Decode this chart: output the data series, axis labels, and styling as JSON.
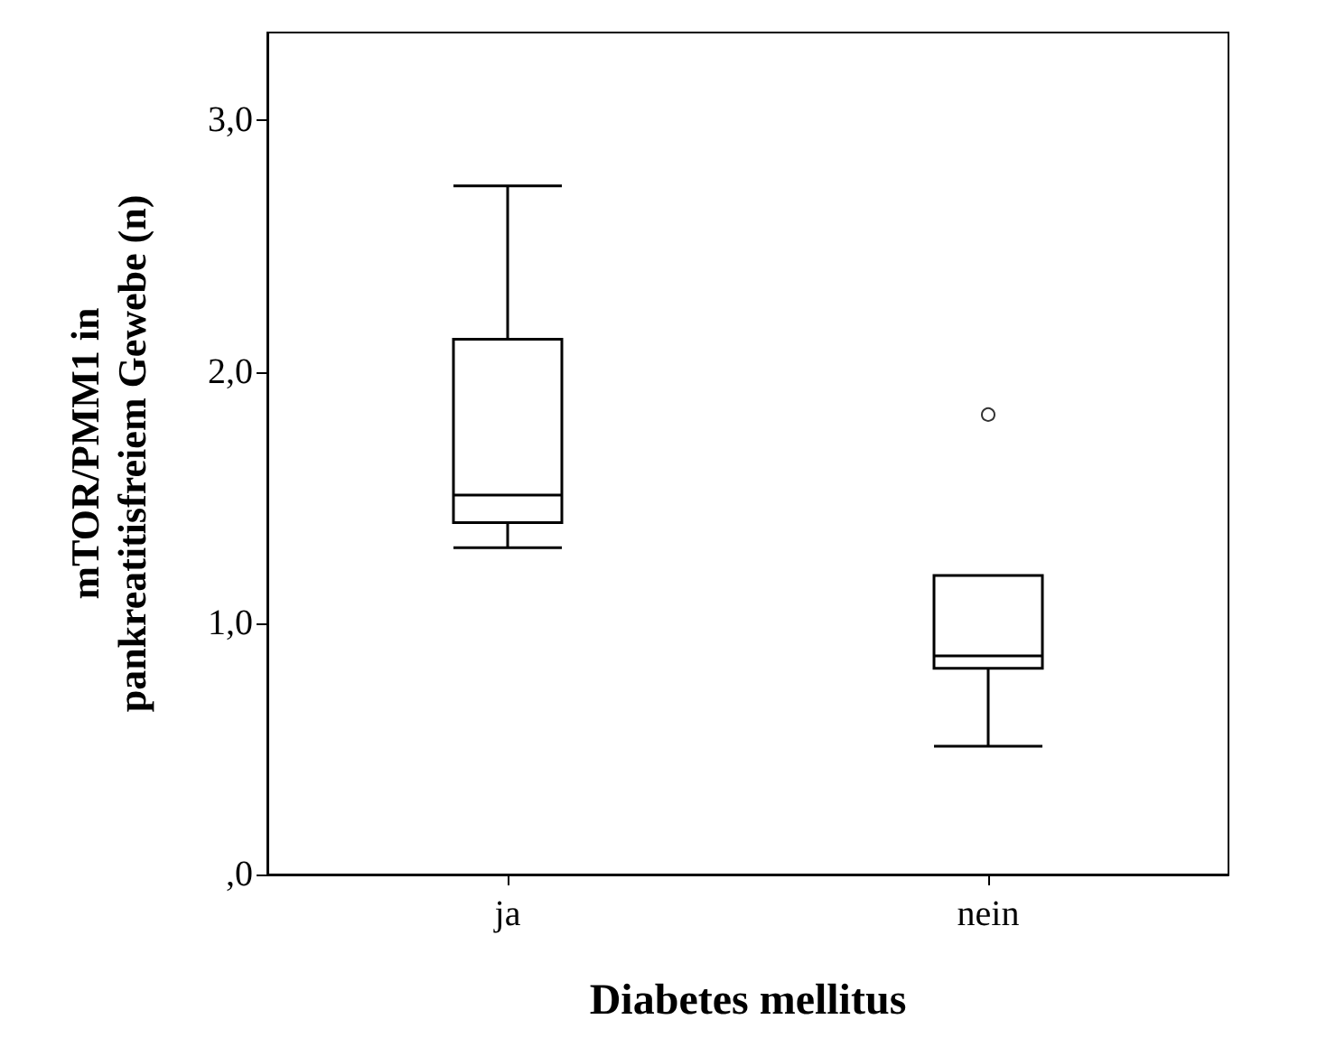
{
  "chart_data": {
    "type": "box",
    "xlabel": "Diabetes mellitus",
    "ylabel": "mTOR/PMM1 in\npankreatitisfreiem Gewebe (n)",
    "categories": [
      "ja",
      "nein"
    ],
    "boxes": [
      {
        "low": 1.3,
        "q1": 1.4,
        "median": 1.51,
        "q3": 2.13,
        "high": 2.74
      },
      {
        "low": 0.51,
        "q1": 0.82,
        "median": 0.87,
        "q3": 1.19,
        "high": 1.19,
        "outliers": [
          1.83
        ]
      }
    ],
    "color": "#ffffff",
    "ylim": [
      0,
      3.35
    ],
    "yticks": [
      {
        "value": 0,
        "label": ",0"
      },
      {
        "value": 1,
        "label": "1,0"
      },
      {
        "value": 2,
        "label": "2,0"
      },
      {
        "value": 3,
        "label": "3,0"
      }
    ],
    "grid": false
  }
}
